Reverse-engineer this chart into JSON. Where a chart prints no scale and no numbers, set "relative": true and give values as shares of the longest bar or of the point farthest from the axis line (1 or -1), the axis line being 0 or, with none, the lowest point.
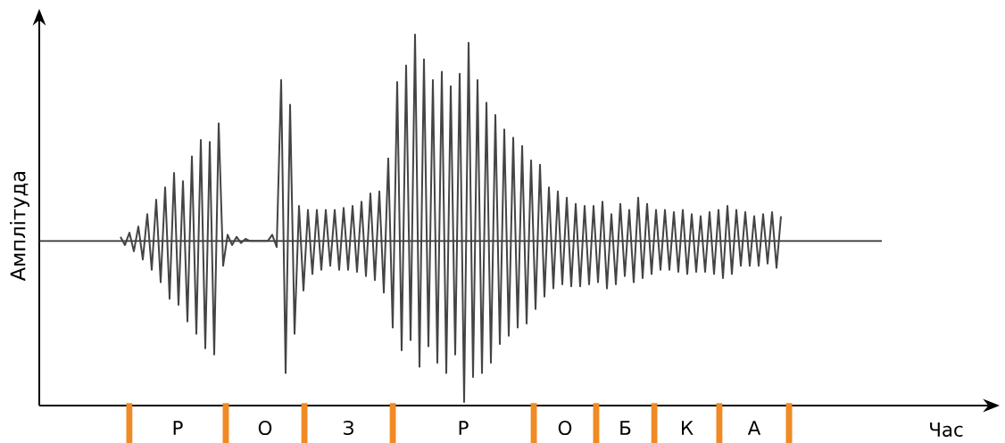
{
  "chart_data": {
    "type": "line",
    "relative": true,
    "ylabel": "Амплітуда",
    "categories": [
      null,
      null,
      null,
      null,
      null,
      null,
      null,
      null,
      null,
      null,
      null,
      null,
      null,
      null,
      null,
      null,
      null,
      null,
      null,
      null,
      null,
      null,
      null,
      null,
      null,
      null,
      null,
      null,
      null,
      null,
      null,
      null,
      null,
      null,
      null,
      null,
      null,
      null,
      null,
      null,
      null,
      null,
      null,
      null,
      null,
      null,
      null,
      null,
      null,
      null,
      null,
      null,
      null,
      null,
      null,
      null,
      null,
      null,
      null,
      null,
      null,
      null,
      null,
      null,
      null,
      null,
      null,
      null,
      null,
      null,
      null,
      null,
      null,
      null,
      null,
      null,
      null,
      null,
      null,
      null,
      null,
      null,
      null,
      null,
      null,
      null,
      null,
      null,
      null,
      null,
      null,
      null,
      null,
      null,
      null,
      null,
      null,
      null,
      null,
      null,
      null,
      null,
      null,
      null,
      null,
      null,
      null,
      null,
      null,
      null,
      null,
      null,
      null,
      null,
      null,
      null,
      null,
      null,
      null,
      null,
      null,
      null,
      null,
      null,
      null,
      null,
      null,
      null,
      null,
      null,
      null,
      null,
      null,
      null,
      null,
      null,
      null,
      null,
      null,
      null,
      null,
      null,
      null,
      null,
      null,
      null,
      null,
      null,
      null
    ],
    "series": [
      {
        "color": "#444444",
        "values": [
          0.02,
          -0.02,
          0.04,
          -0.05,
          0.07,
          -0.09,
          0.13,
          -0.14,
          0.2,
          -0.2,
          0.26,
          -0.28,
          0.33,
          -0.31,
          0.29,
          -0.39,
          0.41,
          -0.45,
          0.49,
          -0.52,
          0.48,
          -0.55,
          0.57,
          -0.12,
          0.03,
          -0.02,
          0.02,
          -0.01,
          0.01,
          0,
          0,
          0,
          0,
          0,
          0.03,
          -0.03,
          0.78,
          -0.64,
          0.66,
          -0.45,
          0.17,
          -0.24,
          0.15,
          -0.16,
          0.15,
          -0.14,
          0.15,
          -0.12,
          0.15,
          -0.14,
          0.16,
          -0.14,
          0.17,
          -0.15,
          0.19,
          -0.17,
          0.23,
          -0.19,
          0.24,
          -0.25,
          0.4,
          -0.42,
          0.77,
          -0.53,
          0.85,
          -0.48,
          1.0,
          -0.61,
          0.88,
          -0.51,
          0.78,
          -0.59,
          0.82,
          -0.64,
          0.75,
          -0.55,
          0.81,
          -0.78,
          0.96,
          -0.66,
          0.78,
          -0.64,
          0.67,
          -0.59,
          0.61,
          -0.5,
          0.54,
          -0.46,
          0.5,
          -0.42,
          0.46,
          -0.4,
          0.39,
          -0.33,
          0.37,
          -0.27,
          0.26,
          -0.23,
          0.24,
          -0.21,
          0.21,
          -0.22,
          0.18,
          -0.22,
          0.17,
          -0.21,
          0.17,
          -0.2,
          0.19,
          -0.23,
          0.13,
          -0.21,
          0.18,
          -0.17,
          0.15,
          -0.2,
          0.21,
          -0.18,
          0.18,
          -0.16,
          0.15,
          -0.14,
          0.15,
          -0.14,
          0.14,
          -0.15,
          0.15,
          -0.16,
          0.13,
          -0.15,
          0.12,
          -0.15,
          0.14,
          -0.16,
          0.15,
          -0.18,
          0.17,
          -0.16,
          0.15,
          -0.12,
          0.14,
          -0.12,
          0.12,
          -0.12,
          0.13,
          -0.11,
          0.14,
          -0.13,
          0.12
        ]
      }
    ],
    "ref_lines": [
      {
        "axis": "y",
        "value": 0,
        "color": "#333333"
      }
    ],
    "annotations": [
      "Р",
      "О",
      "З",
      "Р",
      "О",
      "Б",
      "К",
      "А",
      "Час"
    ]
  }
}
